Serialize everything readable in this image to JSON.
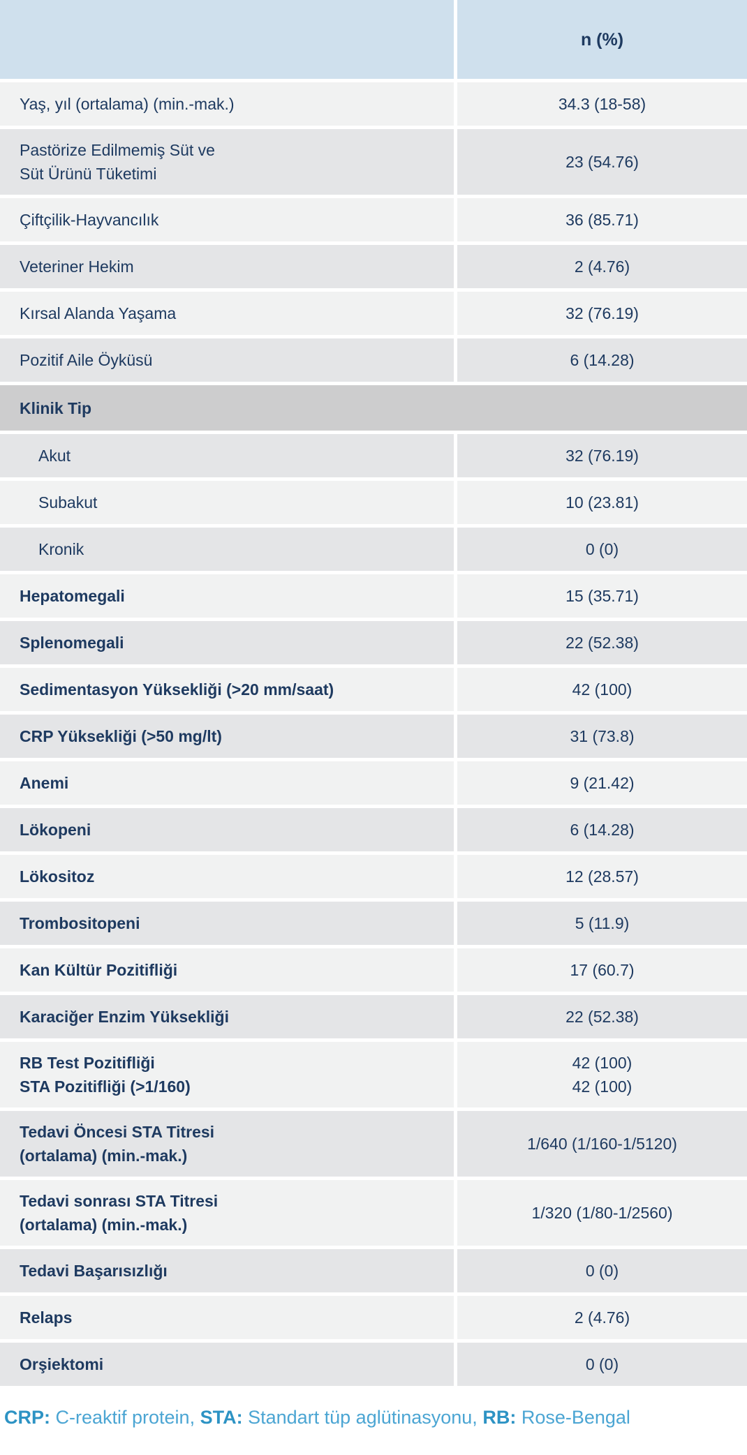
{
  "table": {
    "header": {
      "label_col": "",
      "value_col": "n (%)"
    },
    "rows": [
      {
        "type": "data",
        "bold": false,
        "indent": false,
        "label_lines": [
          "Yaş, yıl (ortalama) (min.-mak.)"
        ],
        "value_lines": [
          "34.3 (18-58)"
        ]
      },
      {
        "type": "data",
        "bold": false,
        "indent": false,
        "label_lines": [
          "Pastörize Edilmemiş Süt ve",
          "Süt Ürünü Tüketimi"
        ],
        "value_lines": [
          "23 (54.76)"
        ]
      },
      {
        "type": "data",
        "bold": false,
        "indent": false,
        "label_lines": [
          "Çiftçilik-Hayvancılık"
        ],
        "value_lines": [
          "36 (85.71)"
        ]
      },
      {
        "type": "data",
        "bold": false,
        "indent": false,
        "label_lines": [
          "Veteriner Hekim"
        ],
        "value_lines": [
          "2 (4.76)"
        ]
      },
      {
        "type": "data",
        "bold": false,
        "indent": false,
        "label_lines": [
          "Kırsal Alanda Yaşama"
        ],
        "value_lines": [
          "32 (76.19)"
        ]
      },
      {
        "type": "data",
        "bold": false,
        "indent": false,
        "label_lines": [
          "Pozitif Aile Öyküsü"
        ],
        "value_lines": [
          "6 (14.28)"
        ]
      },
      {
        "type": "section",
        "bold": true,
        "indent": false,
        "label_lines": [
          "Klinik Tip"
        ],
        "value_lines": []
      },
      {
        "type": "data",
        "bold": false,
        "indent": true,
        "label_lines": [
          "Akut"
        ],
        "value_lines": [
          "32 (76.19)"
        ]
      },
      {
        "type": "data",
        "bold": false,
        "indent": true,
        "label_lines": [
          "Subakut"
        ],
        "value_lines": [
          "10 (23.81)"
        ]
      },
      {
        "type": "data",
        "bold": false,
        "indent": true,
        "label_lines": [
          "Kronik"
        ],
        "value_lines": [
          "0 (0)"
        ]
      },
      {
        "type": "data",
        "bold": true,
        "indent": false,
        "label_lines": [
          "Hepatomegali"
        ],
        "value_lines": [
          "15 (35.71)"
        ]
      },
      {
        "type": "data",
        "bold": true,
        "indent": false,
        "label_lines": [
          "Splenomegali"
        ],
        "value_lines": [
          "22 (52.38)"
        ]
      },
      {
        "type": "data",
        "bold": true,
        "indent": false,
        "label_lines": [
          "Sedimentasyon Yüksekliği (>20 mm/saat)"
        ],
        "value_lines": [
          "42 (100)"
        ]
      },
      {
        "type": "data",
        "bold": true,
        "indent": false,
        "label_lines": [
          "CRP Yüksekliği (>50 mg/lt)"
        ],
        "value_lines": [
          "31 (73.8)"
        ]
      },
      {
        "type": "data",
        "bold": true,
        "indent": false,
        "label_lines": [
          "Anemi"
        ],
        "value_lines": [
          "9 (21.42)"
        ]
      },
      {
        "type": "data",
        "bold": true,
        "indent": false,
        "label_lines": [
          "Lökopeni"
        ],
        "value_lines": [
          "6 (14.28)"
        ]
      },
      {
        "type": "data",
        "bold": true,
        "indent": false,
        "label_lines": [
          "Lökositoz"
        ],
        "value_lines": [
          "12 (28.57)"
        ]
      },
      {
        "type": "data",
        "bold": true,
        "indent": false,
        "label_lines": [
          "Trombositopeni"
        ],
        "value_lines": [
          "5 (11.9)"
        ]
      },
      {
        "type": "data",
        "bold": true,
        "indent": false,
        "label_lines": [
          "Kan Kültür Pozitifliği"
        ],
        "value_lines": [
          "17 (60.7)"
        ]
      },
      {
        "type": "data",
        "bold": true,
        "indent": false,
        "label_lines": [
          "Karaciğer Enzim Yüksekliği"
        ],
        "value_lines": [
          "22 (52.38)"
        ]
      },
      {
        "type": "data",
        "bold": true,
        "indent": false,
        "label_lines": [
          "RB Test Pozitifliği",
          "STA Pozitifliği (>1/160)"
        ],
        "value_lines": [
          "42 (100)",
          "42 (100)"
        ]
      },
      {
        "type": "data",
        "bold": true,
        "indent": false,
        "label_lines": [
          "Tedavi Öncesi STA Titresi",
          "(ortalama) (min.-mak.)"
        ],
        "value_lines": [
          "1/640 (1/160-1/5120)"
        ]
      },
      {
        "type": "data",
        "bold": true,
        "indent": false,
        "label_lines": [
          "Tedavi sonrası STA Titresi",
          "(ortalama) (min.-mak.)"
        ],
        "value_lines": [
          "1/320 (1/80-1/2560)"
        ]
      },
      {
        "type": "data",
        "bold": true,
        "indent": false,
        "label_lines": [
          "Tedavi Başarısızlığı"
        ],
        "value_lines": [
          "0 (0)"
        ]
      },
      {
        "type": "data",
        "bold": true,
        "indent": false,
        "label_lines": [
          "Relaps"
        ],
        "value_lines": [
          "2 (4.76)"
        ]
      },
      {
        "type": "data",
        "bold": true,
        "indent": false,
        "label_lines": [
          "Orşiektomi"
        ],
        "value_lines": [
          "0 (0)"
        ]
      }
    ]
  },
  "footnote": {
    "segments": [
      {
        "abbr": "CRP:",
        "definition": " C-reaktif protein, "
      },
      {
        "abbr": "STA:",
        "definition": " Standart tüp aglütinasyonu, "
      },
      {
        "abbr": "RB:",
        "definition": " Rose-Bengal"
      }
    ]
  },
  "colors": {
    "header_bg": "#cfe0ed",
    "row_light_bg": "#f1f2f2",
    "row_dark_bg": "#e4e5e7",
    "section_row_bg": "#cdcdce",
    "text_navy": "#1e3a60",
    "footnote_blue": "#4ba5d3",
    "footnote_abbr_blue": "#2d93c4"
  }
}
